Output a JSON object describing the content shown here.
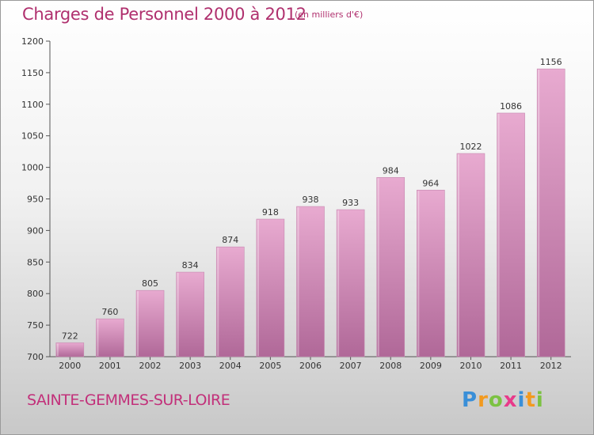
{
  "chart_data": {
    "type": "bar",
    "title": "Charges de Personnel 2000 à 2012",
    "subtitle": "(en milliers d'€)",
    "categories": [
      "2000",
      "2001",
      "2002",
      "2003",
      "2004",
      "2005",
      "2006",
      "2007",
      "2008",
      "2009",
      "2010",
      "2011",
      "2012"
    ],
    "values": [
      722,
      760,
      805,
      834,
      874,
      918,
      938,
      933,
      984,
      964,
      1022,
      1086,
      1156
    ],
    "data_labels": [
      "722",
      "760",
      "805",
      "834",
      "874",
      "918",
      "938",
      "933",
      "984",
      "964",
      "1022",
      "1086",
      "1156"
    ],
    "ylim": [
      700,
      1200
    ],
    "yticks": [
      700,
      750,
      800,
      850,
      900,
      950,
      1000,
      1050,
      1100,
      1150,
      1200
    ],
    "grid": false,
    "bar_color_top": "#e8aad0",
    "bar_color_bottom": "#b06898"
  },
  "location": "SAINTE-GEMMES-SUR-LOIRE",
  "brand": {
    "letters": [
      "P",
      "r",
      "o",
      "x",
      "i",
      "t",
      "i"
    ],
    "colors": [
      "#3a8fd8",
      "#f29a1f",
      "#7cc242",
      "#e83a8a",
      "#3a8fd8",
      "#f29a1f",
      "#7cc242"
    ]
  }
}
